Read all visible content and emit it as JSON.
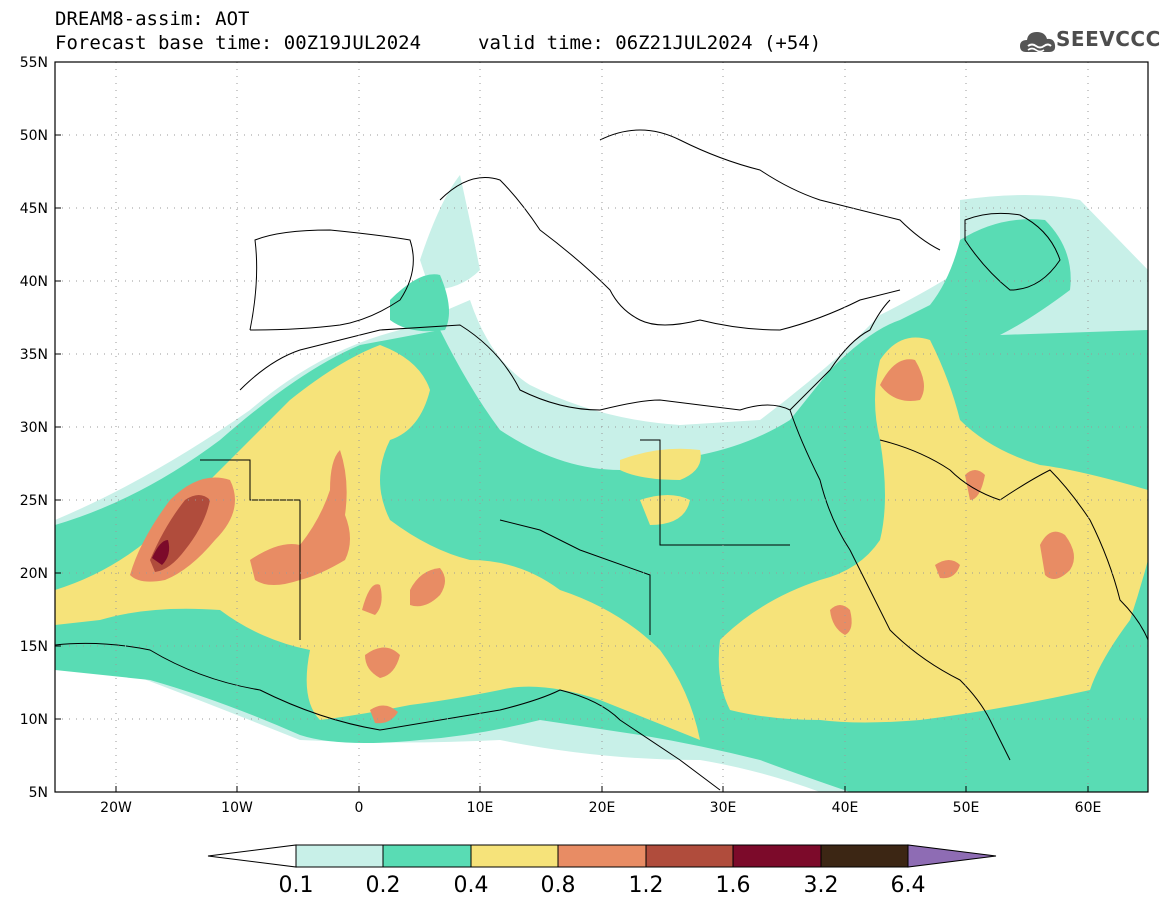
{
  "header": {
    "title": "DREAM8-assim: AOT",
    "base_time": "Forecast base time: 00Z19JUL2024",
    "valid_time": "valid time: 06Z21JUL2024 (+54)"
  },
  "logo": {
    "text": "SEEVCCC",
    "icon": "cloud-icon"
  },
  "map": {
    "lon_range": [
      -25,
      65
    ],
    "lat_range": [
      5,
      55
    ],
    "lon_ticks": [
      "20W",
      "10W",
      "0",
      "10E",
      "20E",
      "30E",
      "40E",
      "50E",
      "60E"
    ],
    "lat_ticks": [
      "5N",
      "10N",
      "15N",
      "20N",
      "25N",
      "30N",
      "35N",
      "40N",
      "45N",
      "50N",
      "55N"
    ],
    "grid": "dotted"
  },
  "colorbar": {
    "labels": [
      "0.1",
      "0.2",
      "0.4",
      "0.8",
      "1.2",
      "1.6",
      "3.2",
      "6.4"
    ],
    "colors": [
      "#ffffff",
      "#c8f0e8",
      "#59dcb4",
      "#f6e37a",
      "#e88c64",
      "#b04c3c",
      "#7c0a2a",
      "#3c2614",
      "#8e6cb4"
    ]
  }
}
